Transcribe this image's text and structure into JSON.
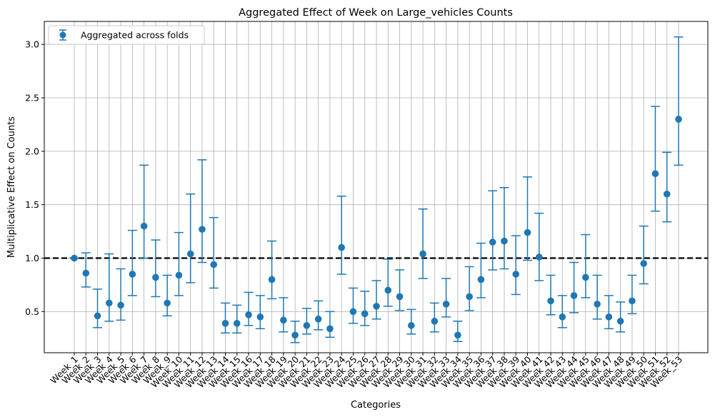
{
  "chart_data": {
    "type": "scatter",
    "title": "Aggregated Effect of Week on Large_vehicles Counts",
    "xlabel": "Categories",
    "ylabel": "Multiplicative Effect on Counts",
    "ylim": [
      0.115,
      3.215
    ],
    "yticks": [
      "0.5",
      "1.0",
      "1.5",
      "2.0",
      "2.5",
      "3.0"
    ],
    "ytick_values": [
      0.5,
      1.0,
      1.5,
      2.0,
      2.5,
      3.0
    ],
    "grid": true,
    "legend_position": "top-left",
    "reference_line": 1.0,
    "colors": {
      "series": "#1f77b4",
      "reference": "#000000",
      "grid": "#b0b0b0"
    },
    "categories": [
      "Week_1",
      "Week_2",
      "Week_3",
      "Week_4",
      "Week_5",
      "Week_6",
      "Week_7",
      "Week_8",
      "Week_9",
      "Week_10",
      "Week_11",
      "Week_12",
      "Week_13",
      "Week_14",
      "Week_15",
      "Week_16",
      "Week_17",
      "Week_18",
      "Week_19",
      "Week_20",
      "Week_21",
      "Week_22",
      "Week_23",
      "Week_24",
      "Week_25",
      "Week_26",
      "Week_27",
      "Week_28",
      "Week_29",
      "Week_30",
      "Week_31",
      "Week_32",
      "Week_33",
      "Week_34",
      "Week_35",
      "Week_36",
      "Week_37",
      "Week_38",
      "Week_39",
      "Week_40",
      "Week_41",
      "Week_42",
      "Week_43",
      "Week_44",
      "Week_45",
      "Week_46",
      "Week_47",
      "Week_48",
      "Week_49",
      "Week_50",
      "Week_51",
      "Week_52",
      "Week_53"
    ],
    "series": [
      {
        "name": "Aggregated across folds",
        "values": [
          1.0,
          0.86,
          0.46,
          0.58,
          0.56,
          0.85,
          1.3,
          0.82,
          0.58,
          0.84,
          1.04,
          1.27,
          0.94,
          0.39,
          0.39,
          0.47,
          0.45,
          0.8,
          0.42,
          0.28,
          0.37,
          0.43,
          0.34,
          1.1,
          0.5,
          0.48,
          0.55,
          0.7,
          0.64,
          0.37,
          1.04,
          0.41,
          0.57,
          0.28,
          0.64,
          0.8,
          1.15,
          1.16,
          0.85,
          1.24,
          1.01,
          0.6,
          0.45,
          0.65,
          0.82,
          0.57,
          0.45,
          0.41,
          0.6,
          0.95,
          1.79,
          1.6,
          2.3
        ],
        "lower": [
          1.0,
          0.73,
          0.35,
          0.41,
          0.42,
          0.65,
          1.0,
          0.64,
          0.46,
          0.65,
          0.77,
          0.96,
          0.72,
          0.3,
          0.3,
          0.37,
          0.34,
          0.62,
          0.31,
          0.21,
          0.29,
          0.33,
          0.26,
          0.85,
          0.39,
          0.37,
          0.43,
          0.55,
          0.51,
          0.29,
          0.81,
          0.31,
          0.45,
          0.22,
          0.51,
          0.63,
          0.89,
          0.9,
          0.66,
          0.98,
          0.79,
          0.47,
          0.35,
          0.49,
          0.63,
          0.43,
          0.34,
          0.31,
          0.48,
          0.76,
          1.44,
          1.34,
          1.87
        ],
        "upper": [
          1.0,
          1.05,
          0.71,
          1.04,
          0.9,
          1.26,
          1.87,
          1.17,
          0.84,
          1.24,
          1.6,
          1.92,
          1.38,
          0.58,
          0.56,
          0.68,
          0.65,
          1.16,
          0.63,
          0.41,
          0.53,
          0.6,
          0.5,
          1.58,
          0.72,
          0.69,
          0.79,
          0.99,
          0.89,
          0.52,
          1.46,
          0.58,
          0.81,
          0.41,
          0.92,
          1.14,
          1.63,
          1.66,
          1.21,
          1.76,
          1.42,
          0.84,
          0.65,
          0.96,
          1.22,
          0.84,
          0.65,
          0.59,
          0.84,
          1.3,
          2.42,
          1.99,
          3.07
        ]
      }
    ]
  }
}
